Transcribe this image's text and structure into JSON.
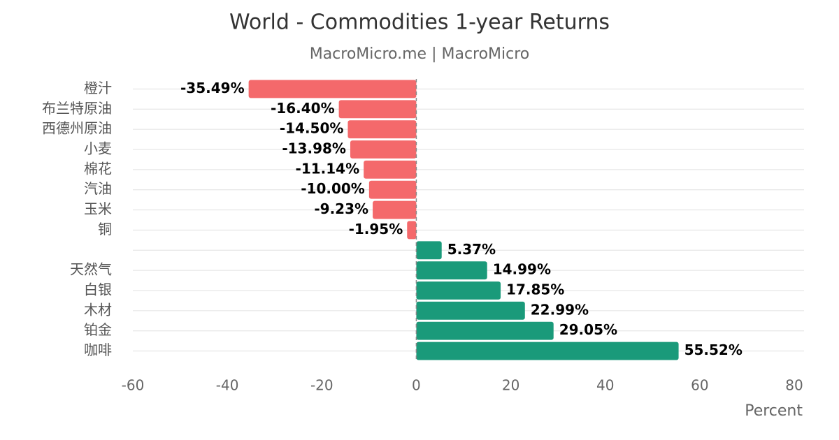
{
  "chart_data": {
    "type": "barh",
    "title": "World - Commodities 1-year Returns",
    "subtitle": "MacroMicro.me | MacroMicro",
    "x_label": "Percent",
    "categories": [
      "橙汁",
      "布兰特原油",
      "西德州原油",
      "小麦",
      "棉花",
      "汽油",
      "玉米",
      "铜",
      null,
      "天然气",
      "白银",
      "木材",
      "铂金",
      "咖啡"
    ],
    "values": [
      -35.49,
      -16.4,
      -14.5,
      -13.98,
      -11.14,
      -10.0,
      -9.23,
      -1.95,
      5.37,
      14.99,
      17.85,
      22.99,
      29.05,
      55.52
    ],
    "value_labels": [
      "-35.49%",
      "-16.40%",
      "-14.50%",
      "-13.98%",
      "-11.14%",
      "-10.00%",
      "-9.23%",
      "-1.95%",
      "5.37%",
      "14.99%",
      "17.85%",
      "22.99%",
      "29.05%",
      "55.52%"
    ],
    "negative_color": "#f4696b",
    "positive_color": "#1a9a7a",
    "xlim": [
      -60,
      80
    ],
    "xticks": [
      -60,
      -40,
      -20,
      0,
      20,
      40,
      60,
      80
    ],
    "grid": true
  }
}
